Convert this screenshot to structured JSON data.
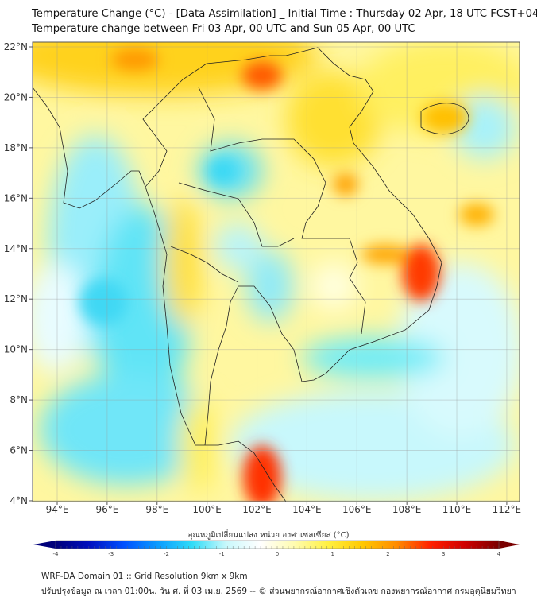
{
  "header": {
    "title": "Temperature Change (°C) - [Data Assimilation] _ Initial Time : Thursday 02 Apr, 18 UTC FCST+048",
    "subtitle": "Temperature change between Fri 03 Apr, 00 UTC and Sun 05 Apr, 00 UTC"
  },
  "map": {
    "lat_ticks": [
      "22°N",
      "20°N",
      "18°N",
      "16°N",
      "14°N",
      "12°N",
      "10°N",
      "8°N",
      "6°N",
      "4°N"
    ],
    "lon_ticks": [
      "94°E",
      "96°E",
      "98°E",
      "100°E",
      "102°E",
      "104°E",
      "106°E",
      "108°E",
      "110°E",
      "112°E"
    ],
    "lat_values": [
      22,
      20,
      18,
      16,
      14,
      12,
      10,
      8,
      6,
      4
    ],
    "lon_values": [
      94,
      96,
      98,
      100,
      102,
      104,
      106,
      108,
      110,
      112
    ],
    "extent": {
      "lon_min": 93,
      "lon_max": 112.5,
      "lat_min": 4,
      "lat_max": 22.2
    }
  },
  "colorbar": {
    "label": "อุณหภูมิเปลี่ยนแปลง หน่วย องศาเซลเซียส (°C)",
    "ticks": [
      "-4",
      "-3",
      "-2",
      "-1",
      "0",
      "1",
      "2",
      "3",
      "4"
    ],
    "min": -4,
    "max": 4,
    "colors": [
      "#00007a",
      "#0010c0",
      "#0050ff",
      "#0a9cff",
      "#30dcf8",
      "#c8f8fb",
      "#ffffff",
      "#fffcb0",
      "#fff040",
      "#ffc800",
      "#ff8c00",
      "#ff2000",
      "#d00000",
      "#7a0000"
    ]
  },
  "footer": {
    "line1": "WRF-DA Domain 01 :: Grid Resolution 9km x 9km",
    "line2": "ปรับปรุงข้อมูล ณ เวลา 01:00น. วัน ศ. ที่ 03 เม.ย. 2569 -- © ส่วนพยากรณ์อากาศเชิงตัวเลข กองพยากรณ์อากาศ กรมอุตุนิยมวิทยา"
  }
}
